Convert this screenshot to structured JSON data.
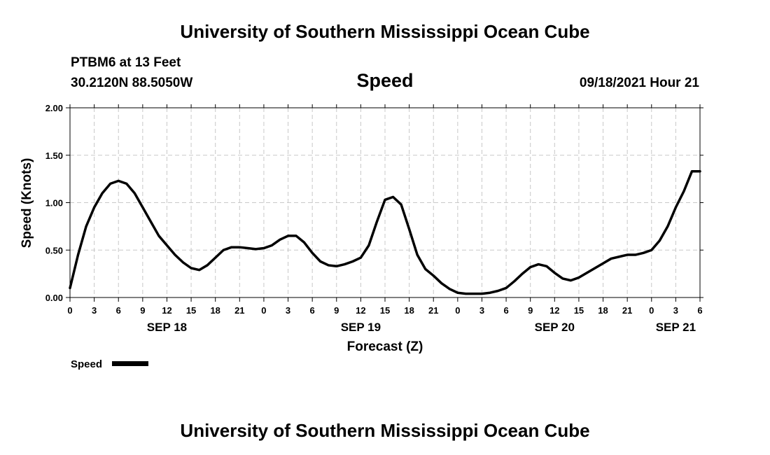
{
  "header": {
    "top_title": "University of Southern Mississippi Ocean Cube",
    "station": "PTBM6 at 13 Feet",
    "coords": "30.2120N  88.5050W",
    "timestamp": "09/18/2021 Hour 21",
    "bottom_title": "University of Southern Mississippi Ocean Cube"
  },
  "chart_data": {
    "type": "line",
    "title": "Speed",
    "xlabel": "Forecast (Z)",
    "ylabel": "Speed (Knots)",
    "ylim": [
      0,
      2.0
    ],
    "xlim_hours": [
      0,
      78
    ],
    "grid": true,
    "y_ticks": [
      "0.00",
      "0.50",
      "1.00",
      "1.50",
      "2.00"
    ],
    "x_ticks": [
      "0",
      "3",
      "6",
      "9",
      "12",
      "15",
      "18",
      "21",
      "0",
      "3",
      "6",
      "9",
      "12",
      "15",
      "18",
      "21",
      "0",
      "3",
      "6",
      "9",
      "12",
      "15",
      "18",
      "21",
      "0",
      "3",
      "6"
    ],
    "date_labels": [
      {
        "label": "SEP 18",
        "hour": 12
      },
      {
        "label": "SEP 19",
        "hour": 36
      },
      {
        "label": "SEP 20",
        "hour": 60
      },
      {
        "label": "SEP 21",
        "hour": 75
      }
    ],
    "legend": [
      {
        "name": "Speed",
        "color": "#000000"
      }
    ],
    "series": [
      {
        "name": "Speed",
        "hours": [
          0,
          1,
          2,
          3,
          4,
          5,
          6,
          7,
          8,
          9,
          10,
          11,
          12,
          13,
          14,
          15,
          16,
          17,
          18,
          19,
          20,
          21,
          22,
          23,
          24,
          25,
          26,
          27,
          28,
          29,
          30,
          31,
          32,
          33,
          34,
          35,
          36,
          37,
          38,
          39,
          40,
          41,
          42,
          43,
          44,
          45,
          46,
          47,
          48,
          49,
          50,
          51,
          52,
          53,
          54,
          55,
          56,
          57,
          58,
          59,
          60,
          61,
          62,
          63,
          64,
          65,
          66,
          67,
          68,
          69,
          70,
          71,
          72,
          73,
          74,
          75,
          76,
          77,
          78
        ],
        "values": [
          0.1,
          0.45,
          0.75,
          0.95,
          1.1,
          1.2,
          1.23,
          1.2,
          1.1,
          0.95,
          0.8,
          0.65,
          0.55,
          0.45,
          0.37,
          0.31,
          0.29,
          0.34,
          0.42,
          0.5,
          0.53,
          0.53,
          0.52,
          0.51,
          0.52,
          0.55,
          0.61,
          0.65,
          0.65,
          0.58,
          0.47,
          0.38,
          0.34,
          0.33,
          0.35,
          0.38,
          0.42,
          0.55,
          0.8,
          1.03,
          1.06,
          0.98,
          0.72,
          0.45,
          0.3,
          0.23,
          0.15,
          0.09,
          0.05,
          0.04,
          0.04,
          0.04,
          0.05,
          0.07,
          0.1,
          0.17,
          0.25,
          0.32,
          0.35,
          0.33,
          0.26,
          0.2,
          0.18,
          0.21,
          0.26,
          0.31,
          0.36,
          0.41,
          0.43,
          0.45,
          0.45,
          0.47,
          0.5,
          0.6,
          0.75,
          0.95,
          1.12,
          1.33,
          1.33
        ]
      }
    ]
  }
}
